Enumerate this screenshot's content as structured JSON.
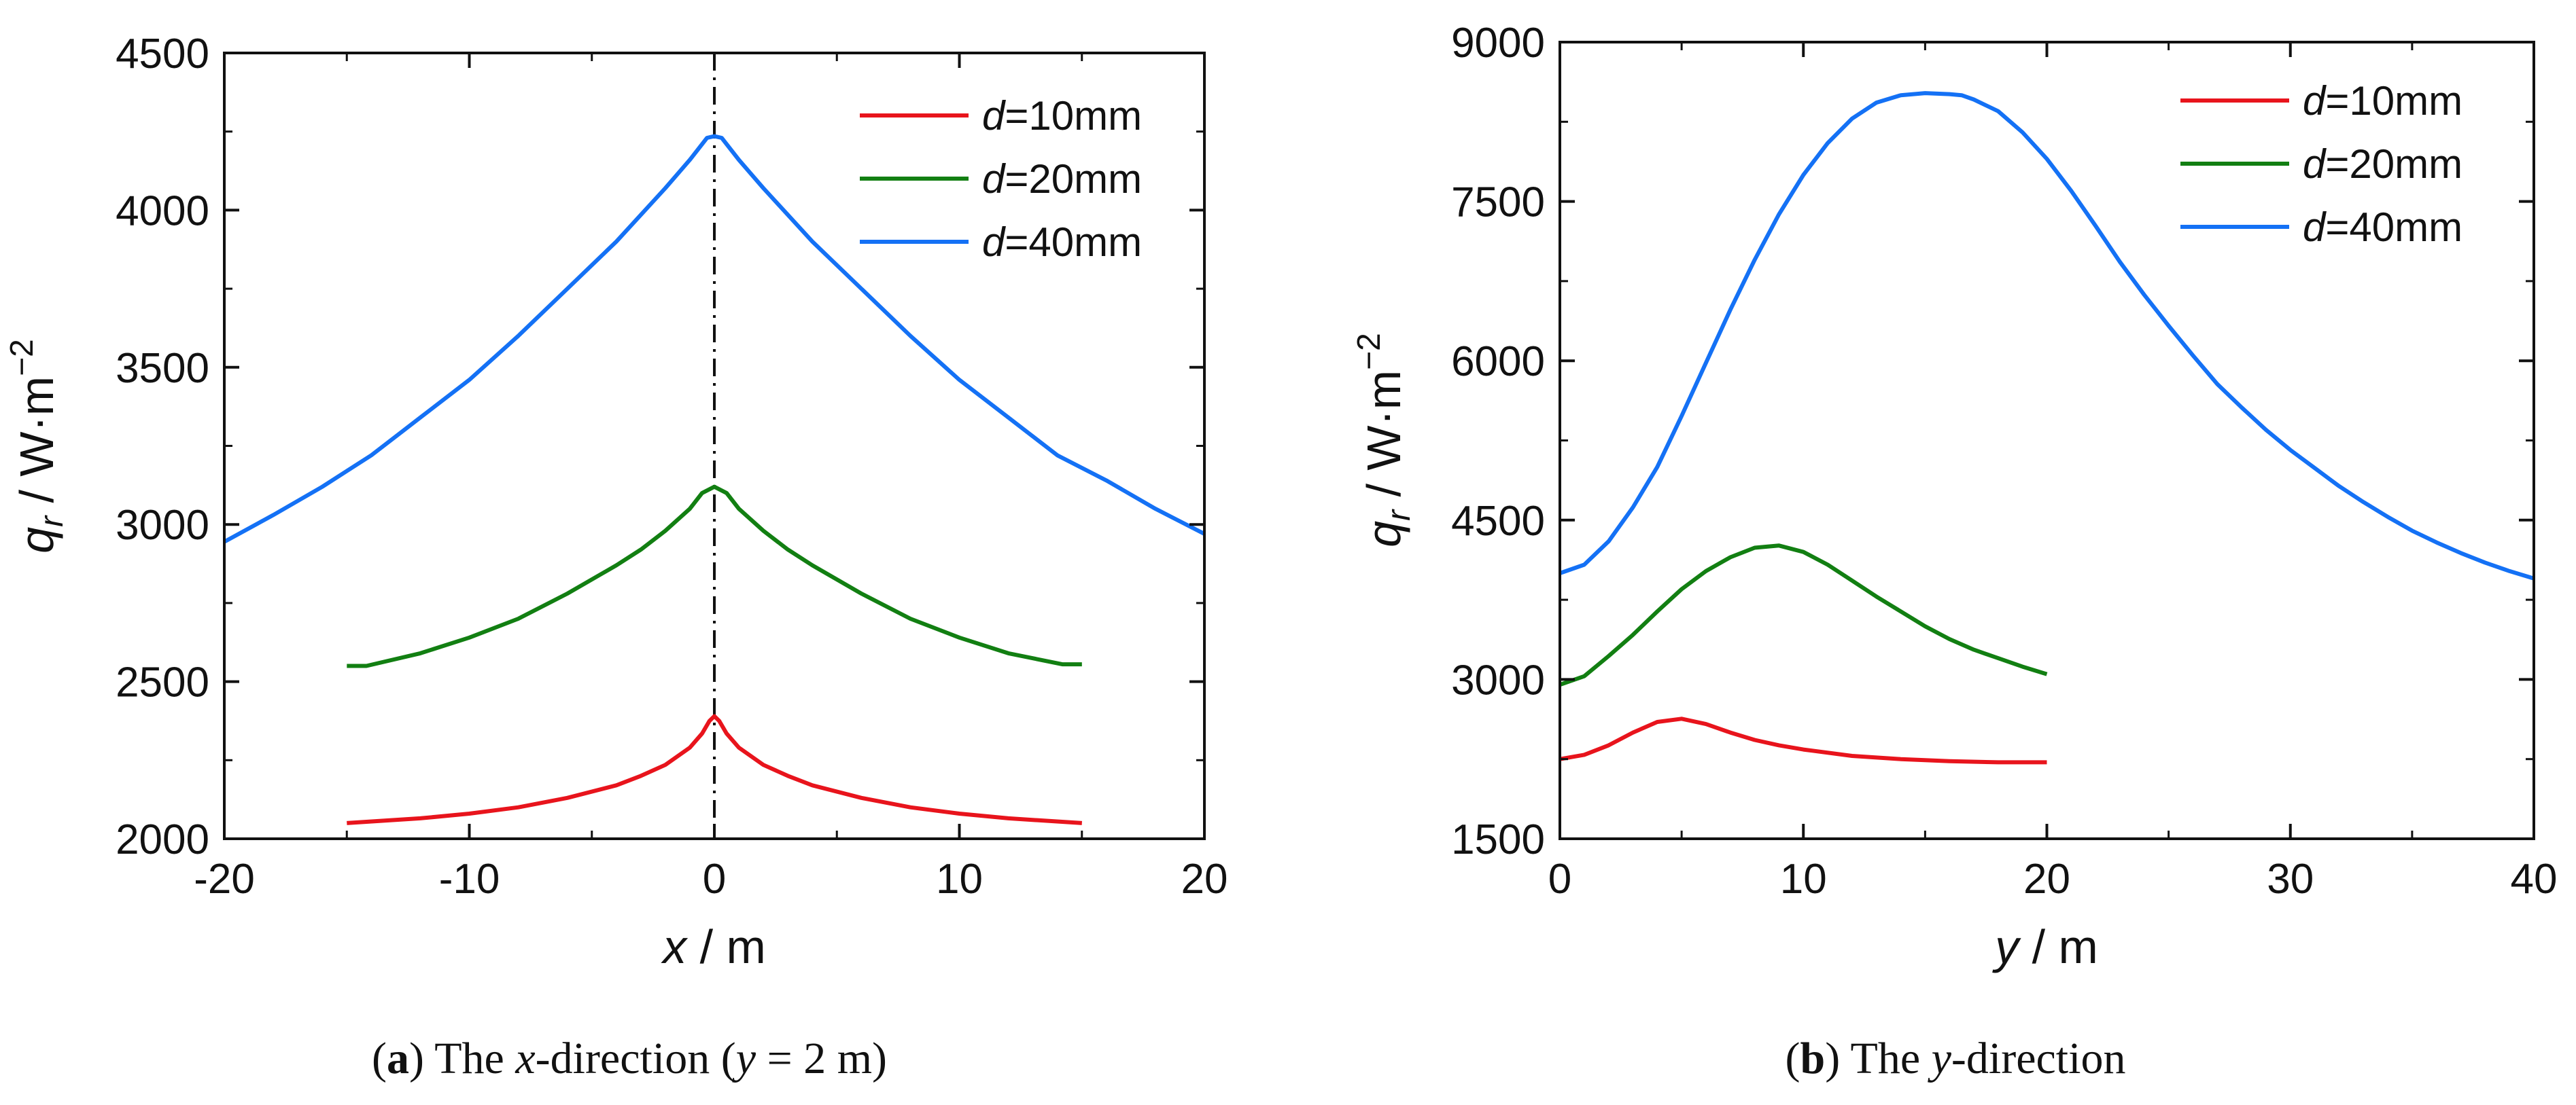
{
  "chart_data": [
    {
      "type": "line",
      "panel": "a",
      "caption": {
        "label": "a",
        "prefix": "The ",
        "var": "x",
        "mid": "-direction (",
        "var2": "y",
        "suffix": " = 2 m)"
      },
      "xlabel": {
        "var": "x",
        "unit": " / m"
      },
      "ylabel": {
        "var": "q",
        "sub": "r",
        "unit": " / W·m",
        "sup": "−2"
      },
      "xlim": [
        -20,
        20
      ],
      "ylim": [
        2000,
        4500
      ],
      "xticks": [
        -20,
        -10,
        0,
        10,
        20
      ],
      "yticks": [
        2000,
        2500,
        3000,
        3500,
        4000,
        4500
      ],
      "xtick_labels": [
        "-20",
        "-10",
        "0",
        "10",
        "20"
      ],
      "ytick_labels": [
        "2000",
        "2500",
        "3000",
        "3500",
        "4000",
        "4500"
      ],
      "reference_line": {
        "x": 0,
        "style": "dash-dot"
      },
      "legend": {
        "position": "top-right"
      },
      "series": [
        {
          "var": "d",
          "label": "=10mm",
          "color": "#e8141c",
          "x": [
            -15,
            -12,
            -10,
            -8,
            -6,
            -4,
            -3,
            -2,
            -1,
            -0.5,
            -0.2,
            0,
            0.2,
            0.5,
            1,
            2,
            3,
            4,
            6,
            8,
            10,
            12,
            15
          ],
          "y": [
            2050,
            2065,
            2080,
            2100,
            2130,
            2170,
            2200,
            2235,
            2290,
            2335,
            2375,
            2390,
            2375,
            2335,
            2290,
            2235,
            2200,
            2170,
            2130,
            2100,
            2080,
            2065,
            2050
          ]
        },
        {
          "var": "d",
          "label": "=20mm",
          "color": "#127f12",
          "x": [
            -15,
            -14.2,
            -12,
            -10,
            -8,
            -6,
            -4,
            -3,
            -2,
            -1,
            -0.5,
            0,
            0.5,
            1,
            2,
            3,
            4,
            6,
            8,
            10,
            12,
            14.2,
            15
          ],
          "y": [
            2550,
            2550,
            2590,
            2640,
            2700,
            2780,
            2870,
            2920,
            2980,
            3050,
            3100,
            3120,
            3100,
            3050,
            2980,
            2920,
            2870,
            2780,
            2700,
            2640,
            2590,
            2555,
            2555
          ]
        },
        {
          "var": "d",
          "label": "=40mm",
          "color": "#1471f5",
          "x": [
            -20,
            -18,
            -16,
            -14,
            -12,
            -10,
            -8,
            -6,
            -4,
            -2,
            -1,
            -0.3,
            0,
            0.3,
            1,
            2,
            4,
            6,
            8,
            10,
            12,
            14,
            16,
            18,
            20
          ],
          "y": [
            2945,
            3030,
            3120,
            3220,
            3340,
            3460,
            3600,
            3750,
            3900,
            4070,
            4160,
            4230,
            4235,
            4230,
            4160,
            4070,
            3900,
            3750,
            3600,
            3460,
            3340,
            3220,
            3140,
            3050,
            2970
          ]
        }
      ]
    },
    {
      "type": "line",
      "panel": "b",
      "caption": {
        "label": "b",
        "prefix": "The ",
        "var": "y",
        "mid": "-direction",
        "var2": "",
        "suffix": ""
      },
      "xlabel": {
        "var": "y",
        "unit": " / m"
      },
      "ylabel": {
        "var": "q",
        "sub": "r",
        "unit": " / W·m",
        "sup": "−2"
      },
      "xlim": [
        0,
        40
      ],
      "ylim": [
        1500,
        9000
      ],
      "xticks": [
        0,
        10,
        20,
        30,
        40
      ],
      "yticks": [
        1500,
        3000,
        4500,
        6000,
        7500,
        9000
      ],
      "xtick_labels": [
        "0",
        "10",
        "20",
        "30",
        "40"
      ],
      "ytick_labels": [
        "1500",
        "3000",
        "4500",
        "6000",
        "7500",
        "9000"
      ],
      "legend": {
        "position": "top-right"
      },
      "series": [
        {
          "var": "d",
          "label": "=10mm",
          "color": "#e8141c",
          "x": [
            0,
            1,
            2,
            3,
            4,
            5,
            6,
            7,
            8,
            9,
            10,
            12,
            14,
            16,
            18,
            20
          ],
          "y": [
            2250,
            2290,
            2380,
            2500,
            2600,
            2630,
            2580,
            2500,
            2430,
            2380,
            2340,
            2280,
            2250,
            2230,
            2220,
            2220
          ]
        },
        {
          "var": "d",
          "label": "=20mm",
          "color": "#127f12",
          "x": [
            0,
            1,
            2,
            3,
            4,
            5,
            6,
            7,
            8,
            9,
            10,
            11,
            12,
            13,
            14,
            15,
            16,
            17,
            18,
            19,
            20
          ],
          "y": [
            2950,
            3030,
            3220,
            3420,
            3640,
            3850,
            4020,
            4150,
            4240,
            4260,
            4200,
            4080,
            3930,
            3780,
            3640,
            3500,
            3380,
            3280,
            3200,
            3120,
            3050
          ]
        },
        {
          "var": "d",
          "label": "=40mm",
          "color": "#1471f5",
          "x": [
            0,
            1,
            2,
            3,
            4,
            5,
            6,
            7,
            8,
            9,
            10,
            11,
            12,
            13,
            14,
            15,
            16,
            16.5,
            17,
            18,
            19,
            20,
            21,
            22,
            23,
            24,
            25,
            26,
            27,
            28,
            29,
            30,
            31,
            32,
            33,
            34,
            35,
            36,
            37,
            38,
            39,
            40
          ],
          "y": [
            4000,
            4080,
            4300,
            4620,
            5000,
            5480,
            5980,
            6480,
            6950,
            7380,
            7750,
            8050,
            8280,
            8430,
            8500,
            8520,
            8510,
            8500,
            8460,
            8350,
            8150,
            7900,
            7600,
            7270,
            6930,
            6620,
            6330,
            6050,
            5780,
            5560,
            5350,
            5160,
            4990,
            4820,
            4670,
            4530,
            4400,
            4290,
            4190,
            4100,
            4020,
            3950
          ]
        }
      ]
    }
  ]
}
